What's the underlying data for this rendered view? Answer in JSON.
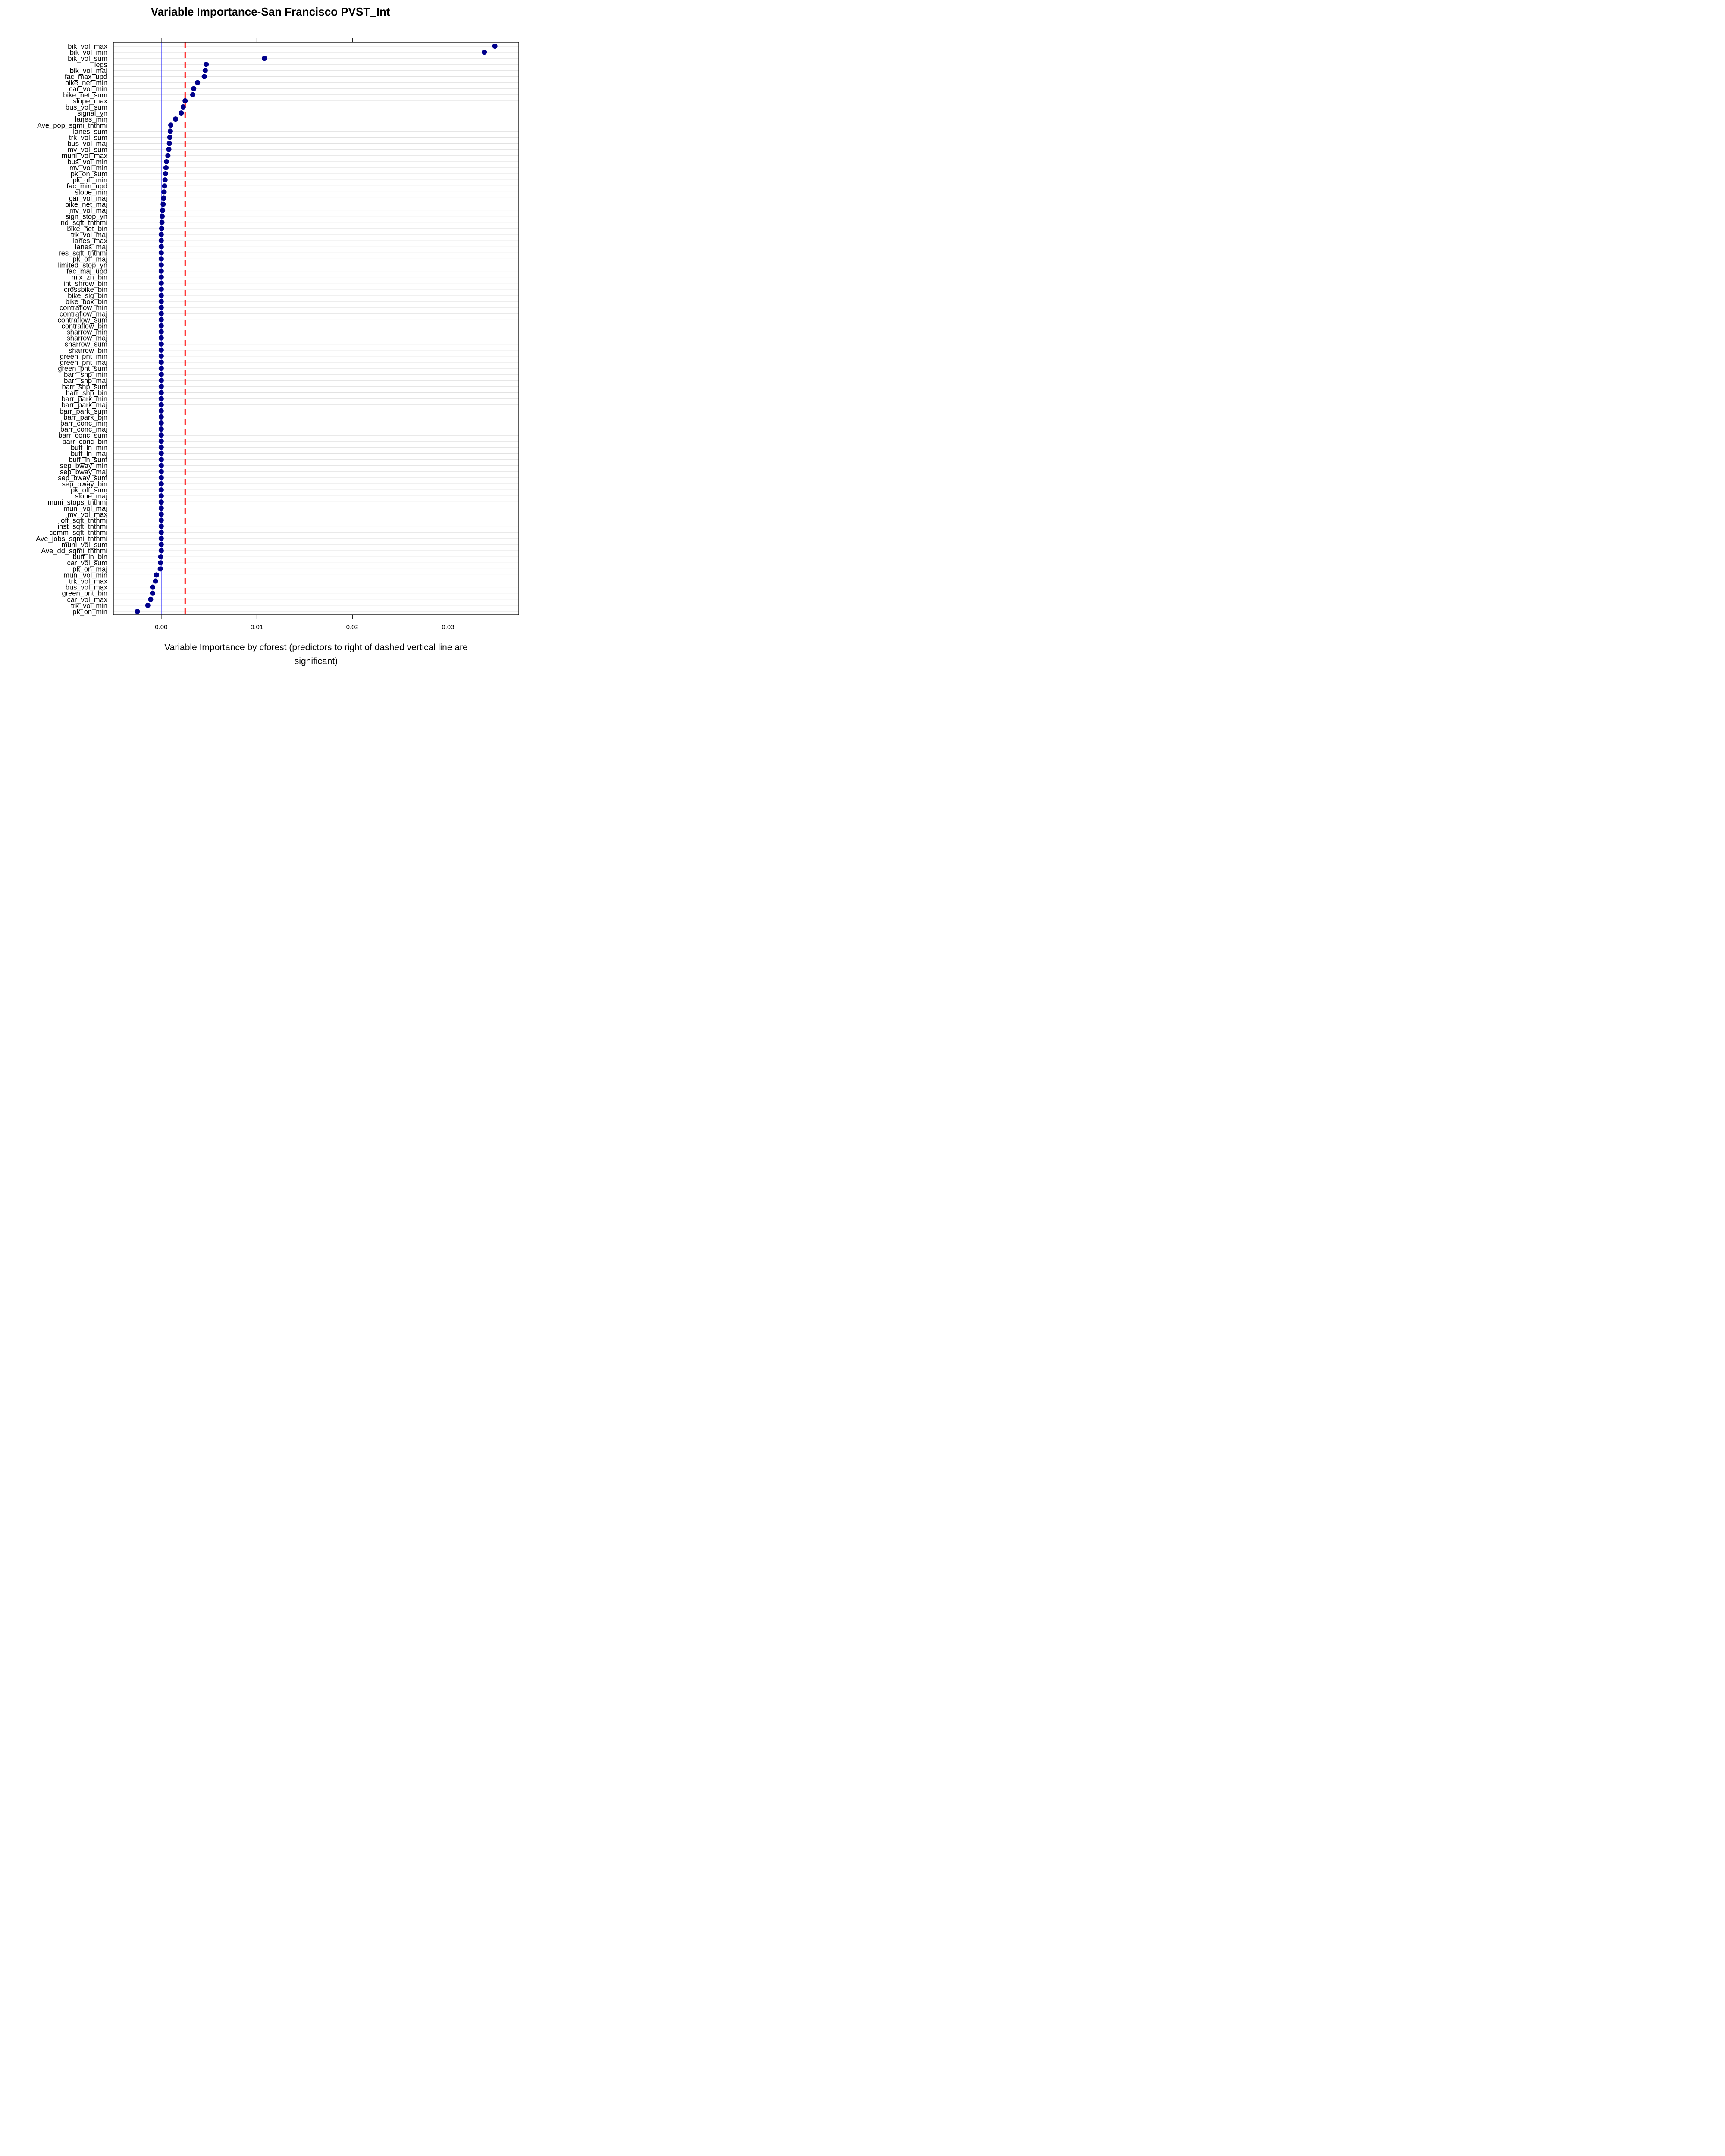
{
  "chart_data": {
    "type": "scatter",
    "title": "Variable Importance-San Francisco PVST_Int",
    "xlabel_lines": [
      "Variable Importance by cforest (predictors to right of dashed vertical line are",
      "significant)"
    ],
    "xlim": [
      -0.005,
      0.0374
    ],
    "xticks": [
      0.0,
      0.01,
      0.02,
      0.03
    ],
    "xtick_labels": [
      "0.00",
      "0.01",
      "0.02",
      "0.03"
    ],
    "reference_line": 0,
    "significance_threshold": 0.0025,
    "grid": true,
    "point_color": "#00008B",
    "reference_line_color": "#0000FF",
    "threshold_line_color": "#FF0000",
    "categories": [
      "bik_vol_max",
      "bik_vol_min",
      "bik_vol_sum",
      "legs",
      "bik_vol_maj",
      "fac_max_upd",
      "bike_net_min",
      "car_vol_min",
      "bike_net_sum",
      "slope_max",
      "bus_vol_sum",
      "signal_yn",
      "lanes_min",
      "Ave_pop_sqmi_tnthmi",
      "lanes_sum",
      "trk_vol_sum",
      "bus_vol_maj",
      "mv_vol_sum",
      "muni_vol_max",
      "bus_vol_min",
      "mv_vol_min",
      "pk_on_sum",
      "pk_off_min",
      "fac_min_upd",
      "slope_min",
      "car_vol_maj",
      "bike_net_maj",
      "mv_vol_maj",
      "sign_stop_yn",
      "ind_sqft_tnthmi",
      "bike_net_bin",
      "trk_vol_maj",
      "lanes_max",
      "lanes_maj",
      "res_sqft_tnthmi",
      "pk_off_maj",
      "limited_stop_yn",
      "fac_maj_upd",
      "mix_zn_bin",
      "int_shrow_bin",
      "crossbike_bin",
      "bike_sig_bin",
      "bike_box_bin",
      "contraflow_min",
      "contraflow_maj",
      "contraflow_sum",
      "contraflow_bin",
      "sharrow_min",
      "sharrow_maj",
      "sharrow_sum",
      "sharrow_bin",
      "green_pnt_min",
      "green_pnt_maj",
      "green_pnt_sum",
      "barr_shp_min",
      "barr_shp_maj",
      "barr_shp_sum",
      "barr_shp_bin",
      "barr_park_min",
      "barr_park_maj",
      "barr_park_sum",
      "barr_park_bin",
      "barr_conc_min",
      "barr_conc_maj",
      "barr_conc_sum",
      "barr_conc_bin",
      "buff_ln_min",
      "buff_ln_maj",
      "buff_ln_sum",
      "sep_bway_min",
      "sep_bway_maj",
      "sep_bway_sum",
      "sep_bway_bin",
      "pk_off_sum",
      "slope_maj",
      "muni_stops_tnthmi",
      "muni_vol_maj",
      "mv_vol_max",
      "off_sqft_tnthmi",
      "inst_sqft_tnthmi",
      "comm_sqft_tnthmi",
      "Ave_jobs_sqmi_tnthmi",
      "muni_vol_sum",
      "Ave_dd_sqmi_tnthmi",
      "buff_ln_bin",
      "car_vol_sum",
      "pk_on_maj",
      "muni_vol_min",
      "trk_vol_max",
      "bus_vol_max",
      "green_pnt_bin",
      "car_vol_max",
      "trk_vol_min",
      "pk_on_min"
    ],
    "values": [
      0.0349,
      0.0338,
      0.0108,
      0.0047,
      0.0046,
      0.0045,
      0.0038,
      0.0034,
      0.0033,
      0.0025,
      0.0023,
      0.0021,
      0.0015,
      0.001,
      0.00095,
      0.0009,
      0.00085,
      0.0008,
      0.0007,
      0.00055,
      0.0005,
      0.00045,
      0.0004,
      0.00035,
      0.0003,
      0.00025,
      0.0002,
      0.00015,
      0.0001,
      8e-05,
      5e-05,
      0.0,
      0.0,
      0.0,
      0.0,
      0.0,
      0.0,
      0.0,
      0.0,
      0.0,
      0.0,
      0.0,
      0.0,
      0.0,
      0.0,
      0.0,
      0.0,
      0.0,
      0.0,
      0.0,
      0.0,
      0.0,
      0.0,
      0.0,
      0.0,
      0.0,
      0.0,
      0.0,
      0.0,
      0.0,
      0.0,
      0.0,
      0.0,
      0.0,
      0.0,
      0.0,
      0.0,
      0.0,
      0.0,
      0.0,
      0.0,
      0.0,
      0.0,
      0.0,
      0.0,
      0.0,
      0.0,
      0.0,
      0.0,
      0.0,
      0.0,
      0.0,
      0.0,
      0.0,
      -5e-05,
      -8e-05,
      -0.0001,
      -0.0005,
      -0.0006,
      -0.0009,
      -0.0009,
      -0.0011,
      -0.0014,
      -0.0025
    ]
  }
}
